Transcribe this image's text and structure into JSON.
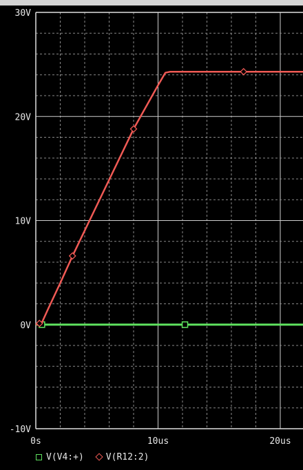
{
  "chart_data": {
    "type": "line",
    "x_unit": "us",
    "xlim": [
      0,
      22
    ],
    "ylim": [
      -10,
      30
    ],
    "grid": true,
    "xticks": [
      {
        "value": 0,
        "label": "0s"
      },
      {
        "value": 10,
        "label": "10us"
      },
      {
        "value": 20,
        "label": "20us"
      }
    ],
    "yticks": [
      {
        "value": 30,
        "label": "30V"
      },
      {
        "value": 20,
        "label": "20V"
      },
      {
        "value": 10,
        "label": "10V"
      },
      {
        "value": 0,
        "label": "0V"
      },
      {
        "value": -10,
        "label": "-10V"
      }
    ],
    "legend_position": "bottom-left",
    "series": [
      {
        "name": "V(V4:+)",
        "color": "#5fe35f",
        "marker": "square",
        "x": [
          0,
          0.5,
          12.2,
          22
        ],
        "y": [
          0,
          0,
          0,
          0
        ],
        "marker_x": [
          0.5,
          12.2
        ]
      },
      {
        "name": "V(R12:2)",
        "color": "#f05a55",
        "marker": "diamond",
        "x": [
          0,
          0.5,
          1.0,
          2.0,
          3.0,
          8.0,
          10.0,
          10.6,
          11.0,
          17.0,
          22.0
        ],
        "y": [
          0,
          0.2,
          1.5,
          4.0,
          6.6,
          18.8,
          23.0,
          24.2,
          24.3,
          24.3,
          24.3
        ],
        "marker_x": [
          0.3,
          3.0,
          8.0,
          17.0
        ]
      }
    ]
  }
}
